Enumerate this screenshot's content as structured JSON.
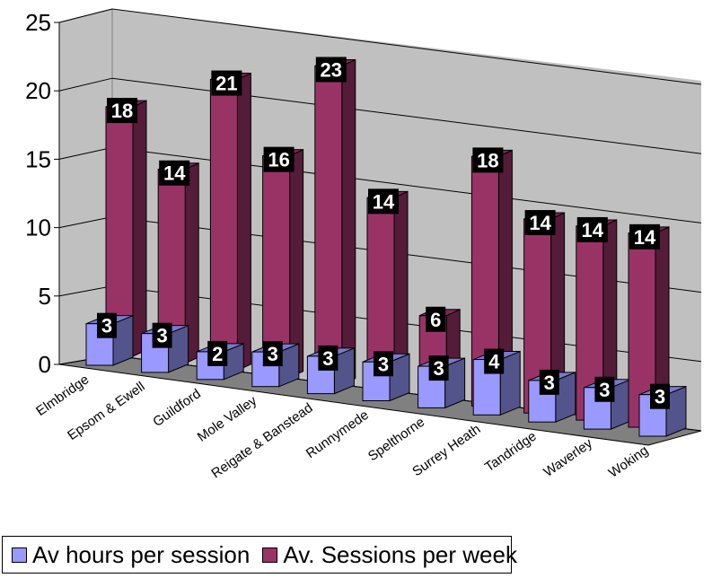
{
  "chart_data": {
    "type": "bar",
    "style": "3d-clustered-column",
    "categories": [
      "Elmbridge",
      "Epsom & Ewell",
      "Guildford",
      "Mole Valley",
      "Reigate & Banstead",
      "Runnymede",
      "Spelthorne",
      "Surrey Heath",
      "Tandridge",
      "Waverley",
      "Woking"
    ],
    "series": [
      {
        "name": "Av hours per session",
        "color": "#9999FF",
        "values": [
          3.0,
          2.8,
          2.0,
          2.5,
          2.7,
          2.8,
          3.0,
          4.0,
          3.0,
          3.0,
          3.0
        ],
        "labels": [
          "3",
          "3",
          "2",
          "3",
          "3",
          "3",
          "3",
          "4",
          "3",
          "3",
          "3"
        ]
      },
      {
        "name": "Av. Sessions per week",
        "color": "#993366",
        "values": [
          18,
          14,
          21,
          16,
          23,
          14,
          6,
          18,
          14,
          14,
          14
        ],
        "labels": [
          "18",
          "14",
          "21",
          "16",
          "23",
          "14",
          "6",
          "18",
          "14",
          "14",
          "14"
        ]
      }
    ],
    "yticks": [
      "0",
      "5",
      "10",
      "15",
      "20",
      "25"
    ],
    "ylim": [
      0,
      25
    ],
    "grid": true,
    "legend": "bottom-left",
    "wall_color": "#C0C0C0",
    "floor_color": "#808080"
  }
}
